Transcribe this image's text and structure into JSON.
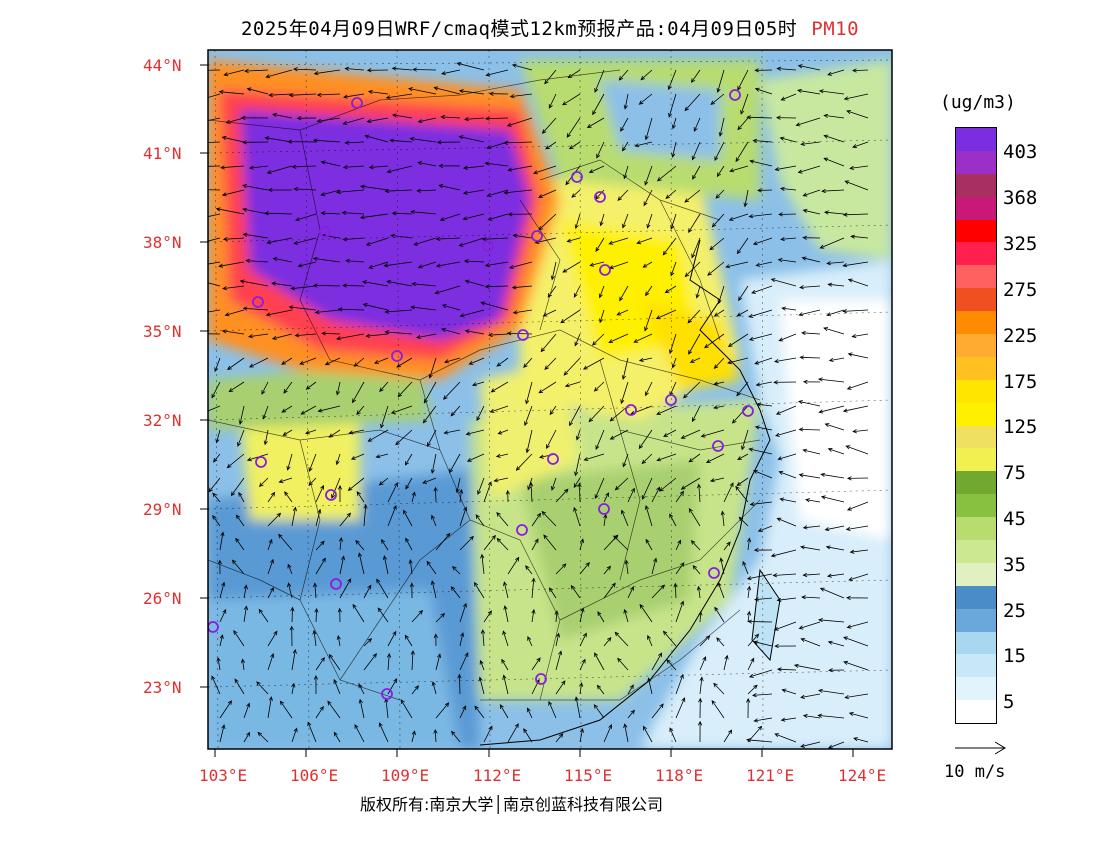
{
  "title": {
    "main": "2025年04月09日WRF/cmaq模式12km预报产品:04月09日05时",
    "pollutant": "PM10"
  },
  "latitude_labels": [
    "44°N",
    "41°N",
    "38°N",
    "35°N",
    "32°N",
    "29°N",
    "26°N",
    "23°N"
  ],
  "longitude_labels": [
    "103°E",
    "106°E",
    "109°E",
    "112°E",
    "115°E",
    "118°E",
    "121°E",
    "124°E"
  ],
  "colorbar": {
    "unit": "(ug/m3)",
    "colors_top_to_bottom": [
      "#7b2ee0",
      "#9b30c8",
      "#a83060",
      "#c81878",
      "#ff0000",
      "#ff2050",
      "#ff6060",
      "#f05020",
      "#ff8c00",
      "#ffaa30",
      "#ffc020",
      "#ffe600",
      "#fff000",
      "#f0e060",
      "#f0f050",
      "#70a830",
      "#88c040",
      "#b8dc70",
      "#cce890",
      "#e0f0c0",
      "#4a8cc8",
      "#6aa8dc",
      "#a8d8f0",
      "#c8e8f8",
      "#e0f4fc",
      "#ffffff"
    ],
    "labels": [
      "403",
      "368",
      "325",
      "275",
      "225",
      "175",
      "125",
      "75",
      "45",
      "35",
      "25",
      "15",
      "5"
    ]
  },
  "wind_vector": {
    "label": "10 m/s"
  },
  "copyright": "版权所有:南京大学│南京创蓝科技有限公司"
}
